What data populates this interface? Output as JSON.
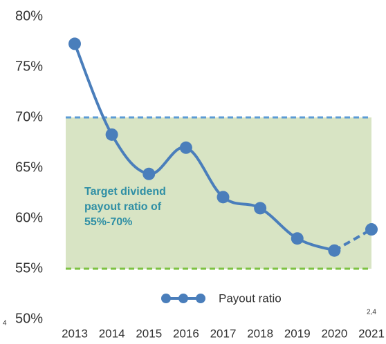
{
  "chart_data": {
    "type": "line",
    "categories": [
      "2013",
      "2014",
      "2015",
      "2016",
      "2017",
      "2018",
      "2019",
      "2020",
      "2021"
    ],
    "series": [
      {
        "name": "Payout ratio",
        "color": "#4a7ebb",
        "values": [
          77.3,
          68.3,
          64.4,
          67.0,
          62.1,
          61.0,
          58.0,
          56.8,
          58.9
        ]
      }
    ],
    "ylim": [
      50,
      80
    ],
    "yticks": [
      {
        "value": 50,
        "label": "50%"
      },
      {
        "value": 55,
        "label": "55%"
      },
      {
        "value": 60,
        "label": "60%"
      },
      {
        "value": 65,
        "label": "65%"
      },
      {
        "value": 70,
        "label": "70%"
      },
      {
        "value": 75,
        "label": "75%"
      },
      {
        "value": 80,
        "label": "80%"
      }
    ],
    "target_band": {
      "range": [
        55,
        70
      ],
      "fill": "#d8e4c4",
      "upper_color": "#5b9bd5",
      "lower_color": "#7dc242"
    },
    "annotation": [
      "Target dividend",
      "payout ratio of",
      "55%-70%"
    ],
    "edge_labels": [
      "4",
      "2,4"
    ],
    "legend": "bottom"
  }
}
